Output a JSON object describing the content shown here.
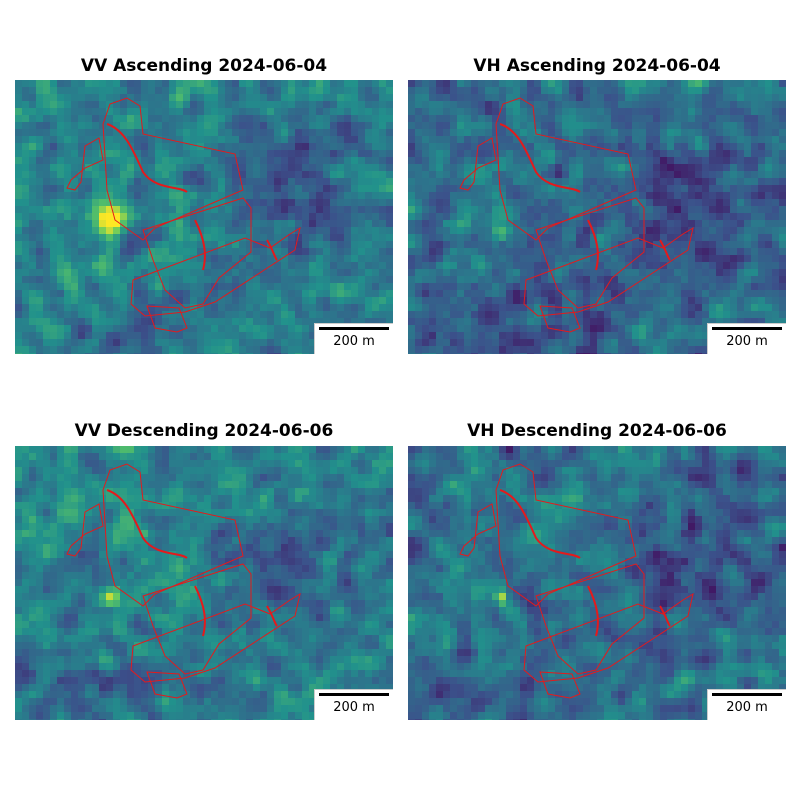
{
  "panels": [
    {
      "title": "VV Ascending 2024-06-04",
      "polarization": "VV",
      "orbit": "Ascending",
      "date": "2024-06-04",
      "scalebar": "200 m"
    },
    {
      "title": "VH Ascending 2024-06-04",
      "polarization": "VH",
      "orbit": "Ascending",
      "date": "2024-06-04",
      "scalebar": "200 m"
    },
    {
      "title": "VV Descending 2024-06-06",
      "polarization": "VV",
      "orbit": "Descending",
      "date": "2024-06-06",
      "scalebar": "200 m"
    },
    {
      "title": "VH Descending 2024-06-06",
      "polarization": "VH",
      "orbit": "Descending",
      "date": "2024-06-06",
      "scalebar": "200 m"
    }
  ],
  "colormap": [
    "#440154",
    "#3b528b",
    "#21918c",
    "#5ec962",
    "#fde725"
  ],
  "outline_color": "#e41a1c"
}
